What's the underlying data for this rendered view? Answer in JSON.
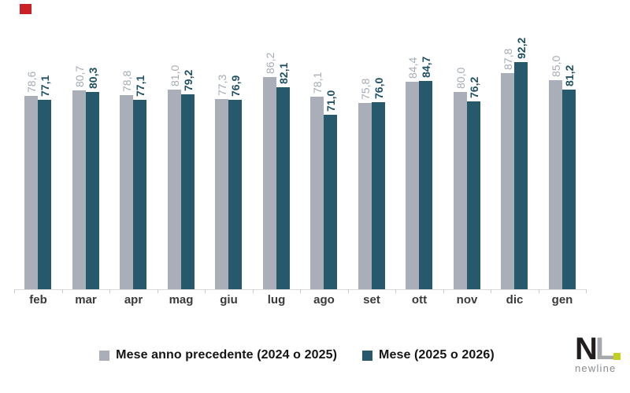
{
  "chart_data": {
    "type": "bar",
    "title": "",
    "xlabel": "",
    "ylabel": "",
    "categories": [
      "feb",
      "mar",
      "apr",
      "mag",
      "giu",
      "lug",
      "ago",
      "set",
      "ott",
      "nov",
      "dic",
      "gen"
    ],
    "series": [
      {
        "name": "Mese anno precedente (2024 o 2025)",
        "color": "#a9aeb9",
        "label_color": "#a5abb5",
        "label_bold": false,
        "values": [
          78.6,
          80.7,
          78.8,
          81.0,
          77.3,
          86.2,
          78.1,
          75.8,
          84.4,
          80.0,
          87.8,
          85.0
        ]
      },
      {
        "name": "Mese (2025 o 2026)",
        "color": "#27596c",
        "label_color": "#1f5063",
        "label_bold": true,
        "values": [
          77.1,
          80.3,
          77.1,
          79.2,
          76.9,
          82.1,
          71.0,
          76.0,
          84.7,
          76.2,
          92.2,
          81.2
        ]
      }
    ],
    "value_label_style": "rotated 90deg, decimal comma, one decimal place",
    "ylim": [
      0,
      117.5
    ],
    "grid": false,
    "legend_position": "bottom-center"
  },
  "legend": {
    "items": [
      {
        "label": "Mese anno precedente (2024 o 2025)",
        "color": "#a9aeb9"
      },
      {
        "label": "Mese (2025 o 2026)",
        "color": "#27596c"
      }
    ]
  },
  "logo": {
    "n": "N",
    "l": "L",
    "name": "newline",
    "n_color": "#221e1f",
    "l_color": "#a6a8ab",
    "accent_color": "#c3d021",
    "name_color": "#8a8c8f"
  },
  "annotations": {
    "red_marker_color": "#cb2026"
  }
}
